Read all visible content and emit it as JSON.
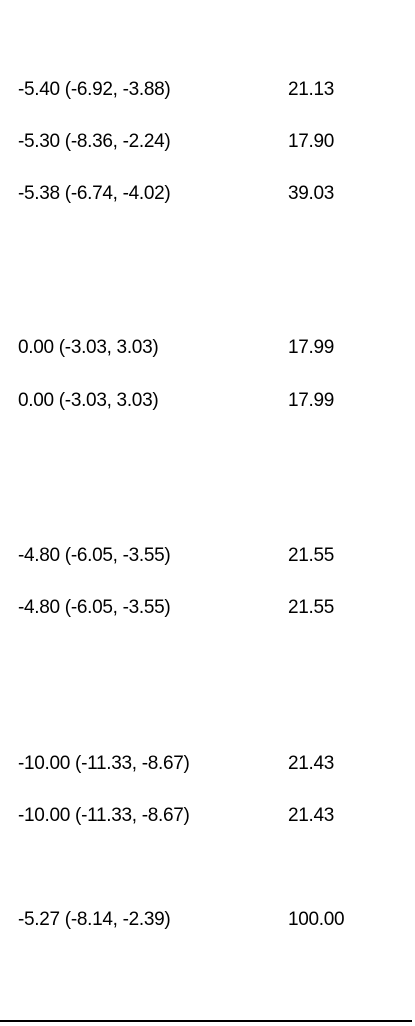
{
  "rows": [
    {
      "estimate": "-5.40 (-6.92, -3.88)",
      "weight": "21.13"
    },
    {
      "estimate": "-5.30 (-8.36, -2.24)",
      "weight": "17.90"
    },
    {
      "estimate": "-5.38 (-6.74, -4.02)",
      "weight": "39.03"
    },
    {
      "estimate": "0.00 (-3.03, 3.03)",
      "weight": "17.99"
    },
    {
      "estimate": "0.00 (-3.03, 3.03)",
      "weight": "17.99"
    },
    {
      "estimate": "-4.80 (-6.05, -3.55)",
      "weight": "21.55"
    },
    {
      "estimate": "-4.80 (-6.05, -3.55)",
      "weight": "21.55"
    },
    {
      "estimate": "-10.00 (-11.33, -8.67)",
      "weight": "21.43"
    },
    {
      "estimate": "-10.00 (-11.33, -8.67)",
      "weight": "21.43"
    },
    {
      "estimate": "-5.27 (-8.14, -2.39)",
      "weight": "100.00"
    }
  ]
}
